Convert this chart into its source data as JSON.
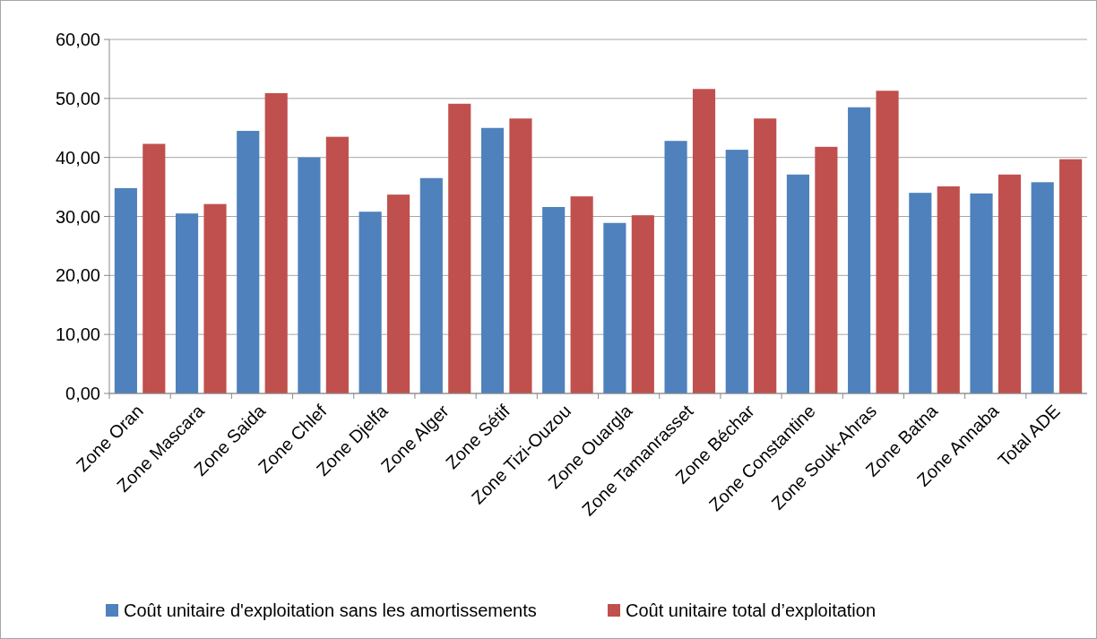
{
  "chart_data": {
    "type": "bar",
    "categories": [
      "Zone Oran",
      "Zone Mascara",
      "Zone Saida",
      "Zone Chlef",
      "Zone Djelfa",
      "Zone Alger",
      "Zone Sétif",
      "Zone Tizi-Ouzou",
      "Zone Ouargla",
      "Zone Tamanrasset",
      "Zone Béchar",
      "Zone Constantine",
      "Zone Souk-Ahras",
      "Zone Batna",
      "Zone Annaba",
      "Total ADE"
    ],
    "series": [
      {
        "name": "Coût unitaire d'exploitation sans les amortissements",
        "color": "#4f81bd",
        "values": [
          34.8,
          30.5,
          44.5,
          40.0,
          30.8,
          36.5,
          45.0,
          31.6,
          28.9,
          42.8,
          41.3,
          37.1,
          48.5,
          34.0,
          33.9,
          35.8
        ]
      },
      {
        "name": "Coût unitaire total d’exploitation",
        "color": "#c0504d",
        "values": [
          42.3,
          32.1,
          50.9,
          43.5,
          33.7,
          49.1,
          46.6,
          33.4,
          30.2,
          51.6,
          46.6,
          41.8,
          51.3,
          35.1,
          37.1,
          39.7
        ]
      }
    ],
    "ylim": [
      0,
      60
    ],
    "yticks": [
      {
        "value": 0,
        "label": "0,00"
      },
      {
        "value": 10,
        "label": "10,00"
      },
      {
        "value": 20,
        "label": "20,00"
      },
      {
        "value": 30,
        "label": "30,00"
      },
      {
        "value": 40,
        "label": "40,00"
      },
      {
        "value": 50,
        "label": "50,00"
      },
      {
        "value": 60,
        "label": "60,00"
      }
    ],
    "grid": "y",
    "legend": "bottom"
  }
}
